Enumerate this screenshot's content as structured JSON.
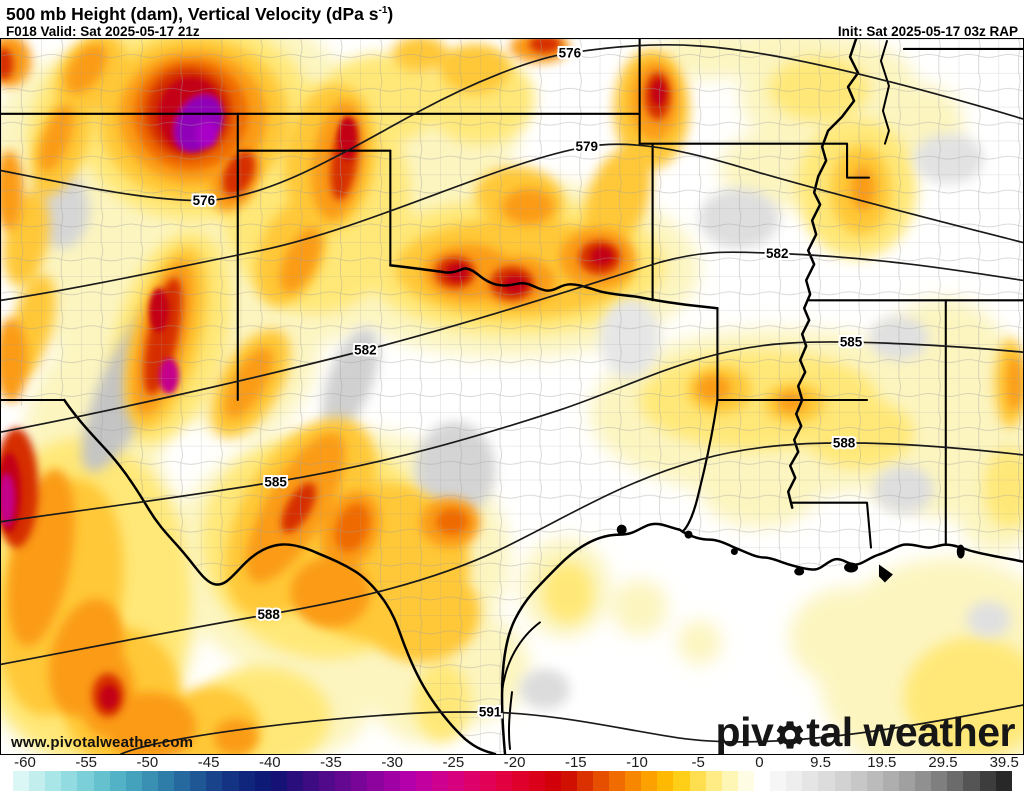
{
  "header": {
    "title_prefix": "500 mb Height (dam), Vertical Velocity (dPa s",
    "title_sup": "-1",
    "title_suffix": ")",
    "forecast": "F018 Valid: Sat 2025-05-17 21z",
    "init": "Init: Sat 2025-05-17 03z RAP"
  },
  "map": {
    "watermark": "www.pivotalweather.com",
    "logo": {
      "part1": "piv",
      "part2": "tal weather",
      "gear_icon": "gear"
    },
    "contour_labels": [
      "576",
      "576",
      "579",
      "582",
      "582",
      "585",
      "585",
      "588",
      "588",
      "591"
    ],
    "palette": {
      "pale_yellow": "#fcf5c0",
      "yellow": "#ffe878",
      "gold": "#ffc838",
      "orange": "#fb9b13",
      "deep_orange": "#ef6a00",
      "red": "#d62f00",
      "dark_red": "#c30016",
      "magenta": "#c4008c",
      "purple": "#8f00b8",
      "sink_gray": "#c9c9c9"
    }
  },
  "colorbar": {
    "ticks": [
      "-60",
      "-55",
      "-50",
      "-45",
      "-40",
      "-35",
      "-30",
      "-25",
      "-20",
      "-15",
      "-10",
      "-5",
      "0",
      "9.5",
      "19.5",
      "29.5",
      "39.5"
    ],
    "cell_colors": [
      "#daf7f5",
      "#c2efee",
      "#a9e6e7",
      "#92dbe0",
      "#7bcfd8",
      "#66c1cf",
      "#54b2c6",
      "#45a2bc",
      "#3990b2",
      "#2e7da8",
      "#26699e",
      "#1f5694",
      "#19438a",
      "#143382",
      "#10257c",
      "#0d1b77",
      "#161175",
      "#2a0f7c",
      "#3d0c83",
      "#500a8a",
      "#640791",
      "#780597",
      "#8c039e",
      "#a001a4",
      "#b400aa",
      "#c200a0",
      "#ce0090",
      "#d7007e",
      "#dd006a",
      "#e10055",
      "#e30040",
      "#e0002c",
      "#da0019",
      "#d20008",
      "#d01000",
      "#db3000",
      "#e74f00",
      "#f16c00",
      "#f88700",
      "#fda100",
      "#ffb900",
      "#ffcf17",
      "#ffdf4f",
      "#ffec85",
      "#fdf6b5",
      "#fefce2",
      "#ffffff",
      "#f6f6f6",
      "#eeeeee",
      "#e5e5e5",
      "#dcdcdc",
      "#d2d2d2",
      "#c7c7c7",
      "#bbbbbb",
      "#aeaeae",
      "#a0a0a0",
      "#909090",
      "#7f7f7f",
      "#6b6b6b",
      "#555555",
      "#3d3d3d",
      "#282828"
    ]
  }
}
